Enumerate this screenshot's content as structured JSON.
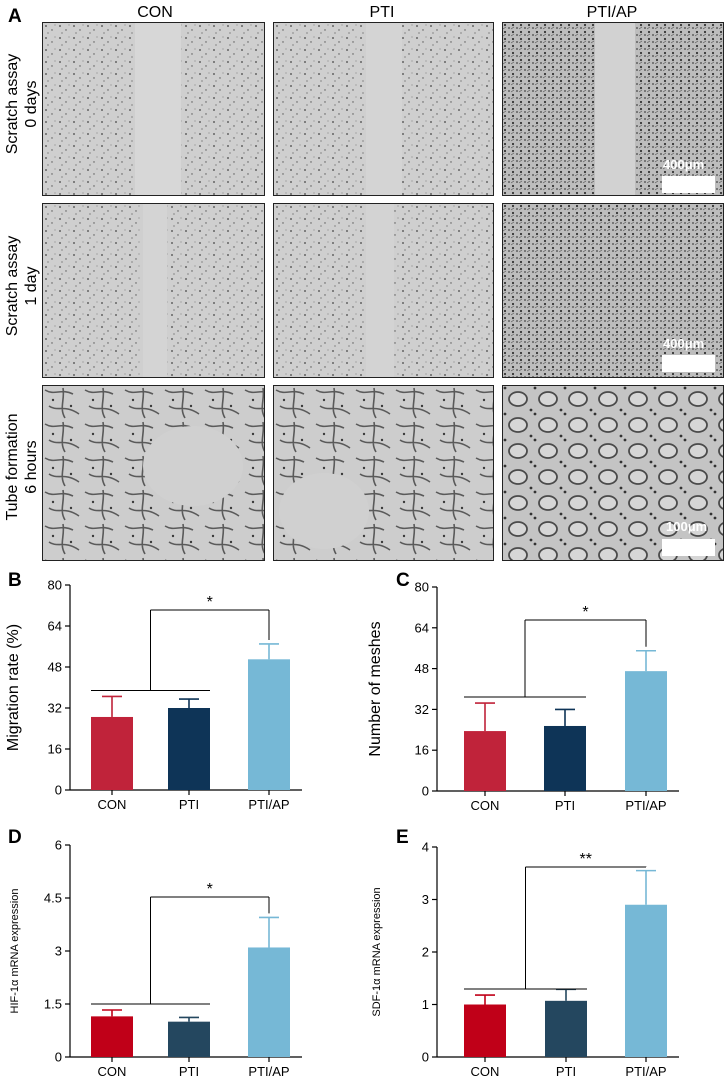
{
  "figure": {
    "panel_letters": [
      "A",
      "B",
      "C",
      "D",
      "E"
    ],
    "columns": [
      "CON",
      "PTI",
      "PTI/AP"
    ],
    "rows": [
      {
        "line1": "Scratch assay",
        "line2": "0 days",
        "scale": "400μm"
      },
      {
        "line1": "Scratch assay",
        "line2": "1 day",
        "scale": "400μm"
      },
      {
        "line1": "Tube formation",
        "line2": "6 hours",
        "scale": "100μm"
      }
    ]
  },
  "colors": {
    "con_BC": "#c0233a",
    "pti_BC": "#0e3457",
    "ptiap_BC": "#76b8d6",
    "con_DE": "#c00018",
    "pti_DE": "#24475f",
    "ptiap_DE": "#76b8d6"
  },
  "chart_data": [
    {
      "id": "B",
      "type": "bar",
      "categories": [
        "CON",
        "PTI",
        "PTI/AP"
      ],
      "values": [
        28.5,
        32,
        51
      ],
      "errors": [
        8,
        3.5,
        6
      ],
      "ylabel": "Migration rate (%)",
      "ylim": [
        0,
        80
      ],
      "yticks": [
        "0",
        "16",
        "32",
        "48",
        "64",
        "80"
      ],
      "significance": "*"
    },
    {
      "id": "C",
      "type": "bar",
      "categories": [
        "CON",
        "PTI",
        "PTI/AP"
      ],
      "values": [
        23.5,
        25.5,
        47
      ],
      "errors": [
        11,
        6.5,
        8
      ],
      "ylabel": "Number of meshes",
      "ylim": [
        0,
        80
      ],
      "yticks": [
        "0",
        "16",
        "32",
        "48",
        "64",
        "80"
      ],
      "significance": "*"
    },
    {
      "id": "D",
      "type": "bar",
      "categories": [
        "CON",
        "PTI",
        "PTI/AP"
      ],
      "values": [
        1.15,
        1.0,
        3.1
      ],
      "errors": [
        0.18,
        0.12,
        0.85
      ],
      "ylabel": "HIF-1α mRNA expression",
      "ylim": [
        0,
        6
      ],
      "yticks": [
        "0",
        "1.5",
        "3",
        "4.5",
        "6"
      ],
      "significance": "*"
    },
    {
      "id": "E",
      "type": "bar",
      "categories": [
        "CON",
        "PTI",
        "PTI/AP"
      ],
      "values": [
        1.0,
        1.07,
        2.9
      ],
      "errors": [
        0.18,
        0.22,
        0.65
      ],
      "ylabel": "SDF-1α mRNA expression",
      "ylim": [
        0,
        4
      ],
      "yticks": [
        "0",
        "1",
        "2",
        "3",
        "4"
      ],
      "significance": "**"
    }
  ]
}
